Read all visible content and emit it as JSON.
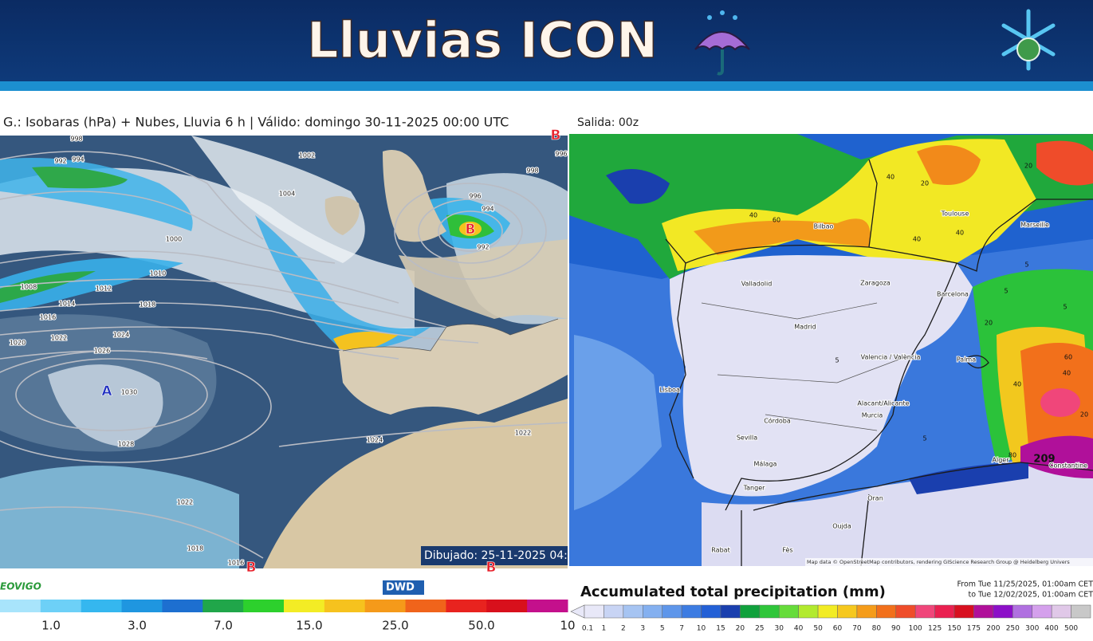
{
  "header": {
    "title": "Lluvias ICON"
  },
  "left_map": {
    "caption": "G.: Isobaras (hPa) + Nubes, Lluvia 6 h | Válido: domingo 30-11-2025 00:00 UTC",
    "stamp": "Dibujado: 25-11-2025 04:",
    "pressure_centers": [
      "B",
      "B",
      "A",
      "B",
      "B"
    ],
    "isobar_labels": [
      "998",
      "994",
      "992",
      "1002",
      "1004",
      "1000",
      "996",
      "994",
      "992",
      "1008",
      "1010",
      "1012",
      "1014",
      "1016",
      "1018",
      "1020",
      "1022",
      "1024",
      "1026",
      "1030",
      "1028",
      "1024",
      "1022",
      "1022",
      "1018",
      "1016",
      "998",
      "996"
    ],
    "logo_left": "EOVIGO",
    "logo_right": "DWD",
    "legend": {
      "labels": [
        "1.0",
        "3.0",
        "7.0",
        "15.0",
        "25.0",
        "50.0",
        "10"
      ],
      "colors": [
        "#a8e4fb",
        "#6dd0f7",
        "#35b7ef",
        "#1f96e0",
        "#1d6fd0",
        "#20a64a",
        "#2dd02d",
        "#f3ec25",
        "#f6c21e",
        "#f59a1a",
        "#f0641b",
        "#e8231f",
        "#d8101c",
        "#c4108c"
      ]
    }
  },
  "right_map": {
    "caption": "Salida: 00z",
    "cities": [
      "Bilbao",
      "Toulouse",
      "Marseille",
      "Valladolid",
      "Zaragoza",
      "Barcelona",
      "Madrid",
      "Valencia / València",
      "Palma",
      "Lisboa",
      "Córdoba",
      "Sevilla",
      "Alacant/Alicante",
      "Murcia",
      "Málaga",
      "Tanger",
      "Alger",
      "Constantine",
      "Oran",
      "Oujda",
      "Rabat",
      "Fès"
    ],
    "contour_labels": [
      "40",
      "60",
      "40",
      "20",
      "40",
      "40",
      "20",
      "5",
      "5",
      "5",
      "20",
      "40",
      "60",
      "40",
      "20",
      "5",
      "5",
      "80",
      "209"
    ],
    "attribution": "Map data © OpenStreetMap contributors, rendering GIScience Research Group @ Heidelberg Univers",
    "legend": {
      "title": "Accumulated total precipitation (mm)",
      "period_from": "From Tue 11/25/2025, 01:00am CET",
      "period_to": "to Tue 12/02/2025, 01:00am CET",
      "labels": [
        "0.1",
        "1",
        "2",
        "3",
        "5",
        "7",
        "10",
        "15",
        "20",
        "25",
        "30",
        "40",
        "50",
        "60",
        "70",
        "80",
        "90",
        "100",
        "125",
        "150",
        "175",
        "200",
        "250",
        "300",
        "400",
        "500"
      ],
      "colors": [
        "#e8e8f8",
        "#c8d4f4",
        "#a6c4f2",
        "#84b0f0",
        "#5e96ea",
        "#3d7ce2",
        "#2360d6",
        "#1a3fae",
        "#10a13c",
        "#2fc63a",
        "#66dc3a",
        "#b2ea2e",
        "#f2ec24",
        "#f6c81e",
        "#f59c1a",
        "#f2701b",
        "#ef4d2a",
        "#f0467a",
        "#ea2050",
        "#d81020",
        "#b0109a",
        "#8c10c8",
        "#b070e0",
        "#d4a0ec",
        "#e0c8e8",
        "#c8c8c8"
      ]
    }
  }
}
